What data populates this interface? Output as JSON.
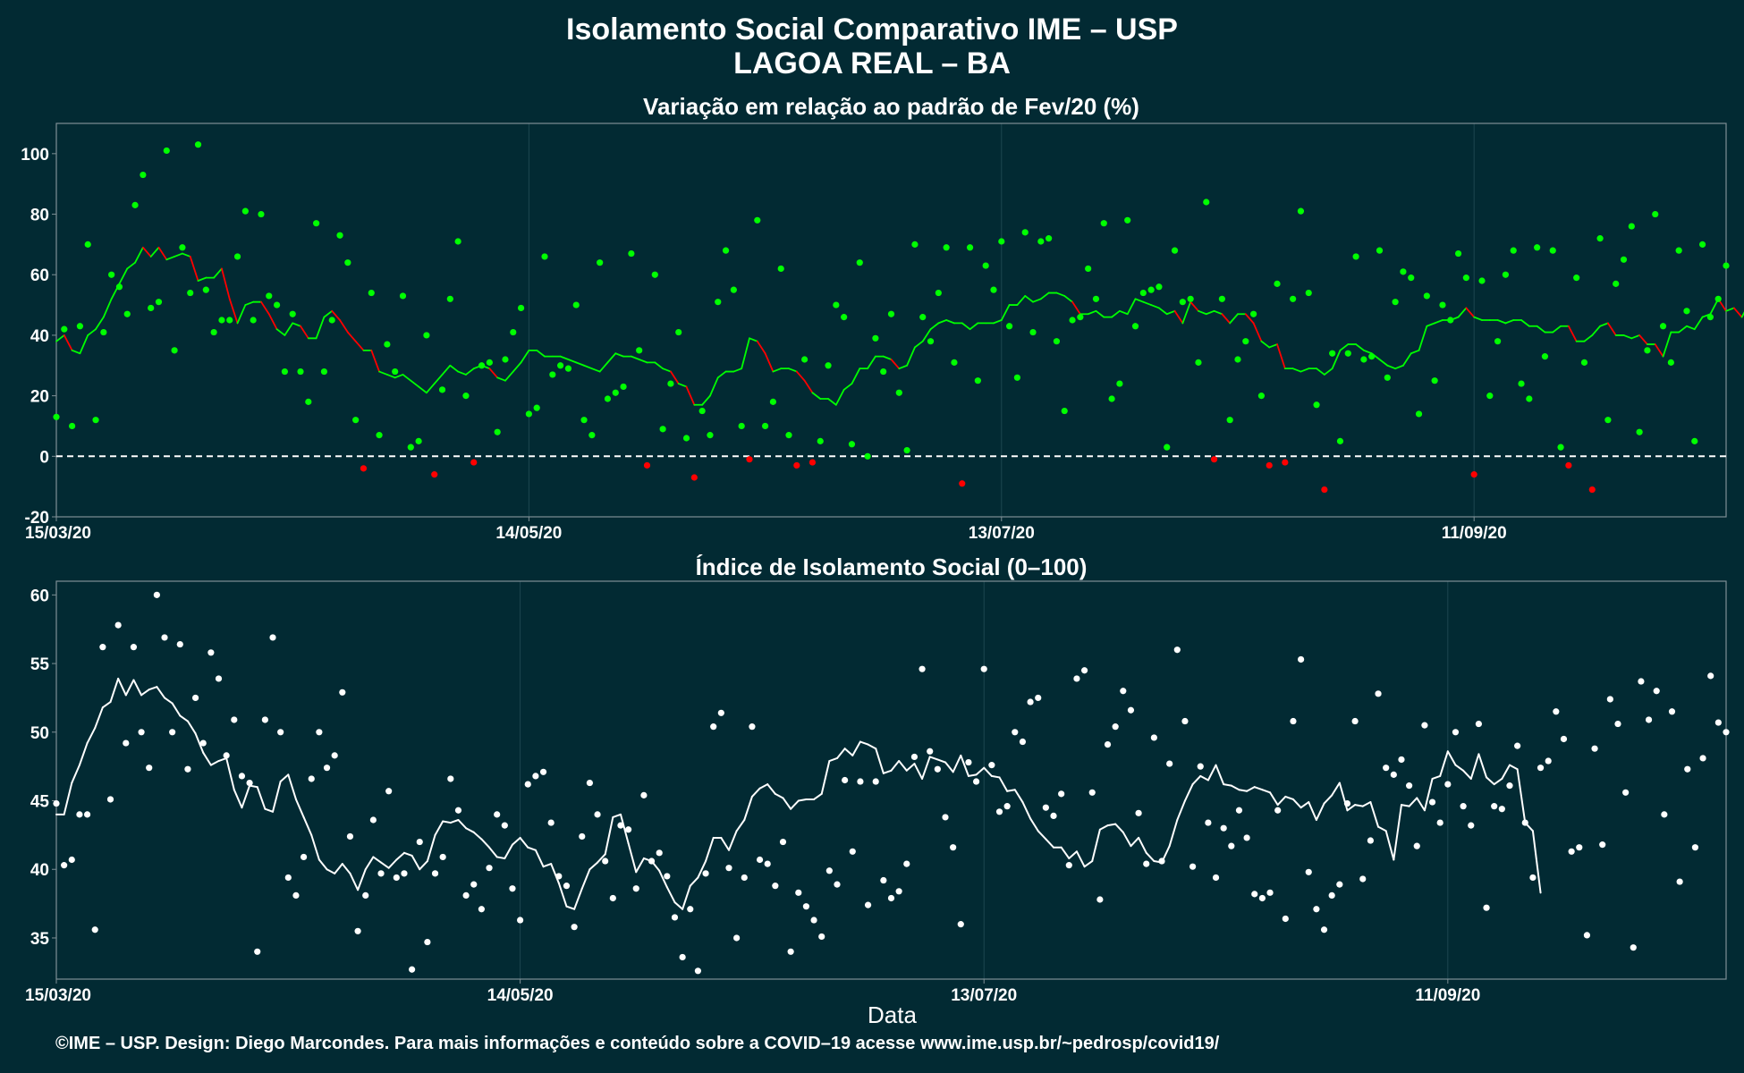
{
  "header": {
    "title_line1": "Isolamento Social Comparativo IME – USP",
    "title_line2": "LAGOA REAL – BA"
  },
  "footer": "©IME – USP. Design: Diego Marcondes. Para mais informações e conteúdo sobre a COVID–19 acesse www.ime.usp.br/~pedrosp/covid19/",
  "colors": {
    "background": "#022a33",
    "positive": "#00ff00",
    "negative": "#ff0000",
    "index": "#ffffff",
    "grid": "#1d4650",
    "frame": "#7f8f95"
  },
  "chart_data": [
    {
      "type": "scatter",
      "subtitle": "Variação em relação ao padrão de Fev/20 (%)",
      "xlabel": "",
      "ylabel": "",
      "x_start": "15/03/20",
      "x_ticks": [
        {
          "day": 0,
          "label": "15/03/20"
        },
        {
          "day": 60,
          "label": "14/05/20"
        },
        {
          "day": 120,
          "label": "13/07/20"
        },
        {
          "day": 180,
          "label": "11/09/20"
        }
      ],
      "ylim": [
        -20,
        110
      ],
      "y_ticks": [
        -20,
        0,
        20,
        40,
        60,
        80,
        100
      ],
      "reference_line": 0,
      "points": [
        13,
        42,
        10,
        43,
        70,
        12,
        41,
        60,
        56,
        47,
        83,
        93,
        49,
        51,
        101,
        35,
        69,
        54,
        103,
        55,
        41,
        45,
        45,
        66,
        81,
        45,
        80,
        53,
        50,
        28,
        47,
        28,
        18,
        77,
        28,
        45,
        73,
        64,
        12,
        -4,
        54,
        7,
        37,
        28,
        53,
        3,
        5,
        40,
        -6,
        22,
        52,
        71,
        20,
        -2,
        30,
        31,
        8,
        32,
        41,
        49,
        14,
        16,
        66,
        27,
        30,
        29,
        50,
        12,
        7,
        64,
        19,
        21,
        23,
        67,
        35,
        -3,
        60,
        9,
        24,
        41,
        6,
        -7,
        15,
        7,
        51,
        68,
        55,
        10,
        -1,
        78,
        10,
        18,
        62,
        7,
        -3,
        32,
        -2,
        5,
        30,
        50,
        46,
        4,
        64,
        0,
        39,
        28,
        47,
        21,
        2,
        70,
        46,
        38,
        54,
        69,
        31,
        -9,
        69,
        25,
        63,
        55,
        71,
        43,
        26,
        74,
        41,
        71,
        72,
        38,
        15,
        45,
        46,
        62,
        52,
        77,
        19,
        24,
        78,
        43,
        54,
        55,
        56,
        3,
        68,
        51,
        52,
        31,
        84,
        -1,
        52,
        12,
        32,
        38,
        47,
        20,
        -3,
        57,
        -2,
        52,
        81,
        54,
        17,
        -11,
        34,
        5,
        34,
        66,
        32,
        33,
        68,
        26,
        51,
        61,
        59,
        14,
        53,
        25,
        50,
        45,
        67,
        59,
        -6,
        58,
        20,
        38,
        60,
        68,
        24,
        19,
        69,
        33,
        68,
        3,
        -3,
        59,
        31,
        -11,
        72,
        12,
        57,
        65,
        76,
        8,
        35,
        80,
        43,
        31,
        68,
        48,
        5,
        70,
        46,
        52,
        63
      ],
      "smooth": [
        38,
        40,
        35,
        34,
        40,
        42,
        46,
        52,
        57,
        62,
        64,
        69,
        66,
        69,
        65,
        66,
        67,
        66,
        58,
        59,
        59,
        62,
        52,
        44,
        50,
        51,
        51,
        47,
        42,
        40,
        44,
        43,
        39,
        39,
        46,
        48,
        45,
        41,
        38,
        35,
        35,
        28,
        27,
        26,
        27,
        25,
        23,
        21,
        24,
        27,
        30,
        28,
        27,
        29,
        30,
        29,
        26,
        25,
        28,
        31,
        35,
        35,
        33,
        33,
        33,
        32,
        31,
        30,
        29,
        28,
        31,
        34,
        33,
        33,
        32,
        31,
        31,
        29,
        28,
        24,
        23,
        17,
        17,
        20,
        26,
        28,
        28,
        29,
        39,
        38,
        34,
        28,
        29,
        29,
        28,
        25,
        21,
        19,
        19,
        17,
        22,
        24,
        29,
        29,
        33,
        33,
        32,
        29,
        30,
        36,
        38,
        42,
        44,
        45,
        44,
        44,
        42,
        44,
        44,
        44,
        45,
        50,
        50,
        53,
        51,
        52,
        54,
        54,
        53,
        51,
        47,
        47,
        48,
        46,
        46,
        48,
        47,
        52,
        51,
        50,
        49,
        47,
        48,
        44,
        51,
        48,
        47,
        48,
        47,
        44,
        47,
        47,
        44,
        38,
        36,
        37,
        29,
        29,
        28,
        29,
        29,
        27,
        29,
        35,
        37,
        37,
        35,
        34,
        32,
        30,
        29,
        30,
        34,
        35,
        43,
        44,
        45,
        45,
        46,
        49,
        46,
        45,
        45,
        45,
        44,
        45,
        45,
        43,
        43,
        41,
        41,
        43,
        43,
        38,
        38,
        40,
        43,
        44,
        40,
        40,
        39,
        40,
        37,
        37,
        33,
        41,
        41,
        43,
        42,
        46,
        47,
        52,
        48,
        49,
        46,
        51,
        47,
        46,
        46,
        48,
        48
      ]
    },
    {
      "type": "scatter",
      "subtitle": "Índice de Isolamento Social (0–100)",
      "xlabel": "Data",
      "ylabel": "",
      "x_start": "15/03/20",
      "x_ticks": [
        {
          "day": 0,
          "label": "15/03/20"
        },
        {
          "day": 60,
          "label": "14/05/20"
        },
        {
          "day": 120,
          "label": "13/07/20"
        },
        {
          "day": 180,
          "label": "11/09/20"
        }
      ],
      "ylim": [
        32,
        61
      ],
      "y_ticks": [
        35,
        40,
        45,
        50,
        55,
        60
      ],
      "points": [
        44.8,
        40.3,
        40.7,
        44.0,
        44.0,
        35.6,
        56.2,
        45.1,
        57.8,
        49.2,
        56.2,
        50.0,
        47.4,
        60.0,
        56.9,
        50.0,
        56.4,
        47.3,
        52.5,
        49.2,
        55.8,
        53.9,
        48.3,
        50.9,
        46.8,
        46.3,
        34.0,
        50.9,
        56.9,
        50.0,
        39.4,
        38.1,
        40.9,
        46.6,
        50.0,
        47.4,
        48.3,
        52.9,
        42.4,
        35.5,
        38.1,
        43.6,
        39.7,
        45.7,
        39.4,
        39.7,
        32.7,
        42.0,
        34.7,
        39.7,
        40.9,
        46.6,
        44.3,
        38.1,
        38.9,
        37.1,
        40.1,
        44.0,
        43.2,
        38.6,
        36.3,
        46.2,
        46.8,
        47.1,
        43.4,
        39.5,
        38.8,
        35.8,
        42.4,
        46.3,
        44.0,
        40.6,
        37.9,
        43.2,
        42.9,
        38.6,
        45.4,
        40.6,
        41.2,
        39.5,
        36.5,
        33.6,
        37.1,
        32.6,
        39.7,
        50.4,
        51.4,
        40.1,
        35.0,
        39.4,
        50.4,
        40.7,
        40.4,
        38.8,
        42.0,
        34.0,
        38.3,
        37.3,
        36.3,
        35.1,
        39.9,
        38.9,
        46.5,
        41.3,
        46.4,
        37.4,
        46.4,
        39.2,
        37.9,
        38.4,
        40.4,
        48.2,
        54.6,
        48.6,
        47.3,
        43.8,
        41.6,
        36.0,
        47.8,
        46.4,
        54.6,
        47.6,
        44.2,
        44.6,
        50.0,
        49.3,
        52.2,
        52.5,
        44.5,
        43.9,
        45.5,
        40.3,
        53.9,
        54.5,
        45.6,
        37.8,
        49.1,
        50.4,
        53.0,
        51.6,
        44.1,
        40.4,
        49.6,
        40.6,
        47.7,
        56.0,
        50.8,
        40.2,
        47.5,
        43.4,
        39.4,
        43.0,
        41.7,
        44.3,
        42.3,
        38.2,
        37.9,
        38.3,
        44.3,
        36.4,
        50.8,
        55.3,
        39.8,
        37.1,
        35.6,
        38.1,
        38.9,
        44.8,
        50.8,
        39.3,
        42.1,
        52.8,
        47.4,
        46.9,
        48.0,
        46.1,
        41.7,
        50.5,
        44.9,
        43.4,
        46.2,
        50.0,
        44.6,
        43.2,
        50.6,
        37.2,
        44.6,
        44.4,
        46.1,
        49.0,
        43.4,
        39.4,
        47.4,
        47.9,
        51.5,
        49.5,
        41.3,
        41.6,
        35.2,
        48.8,
        41.8,
        52.4,
        50.6,
        45.6,
        34.3,
        53.7,
        50.9,
        53.0,
        44.0,
        51.5,
        39.1,
        47.3,
        41.6,
        48.1,
        54.1,
        50.7,
        50.0
      ],
      "smooth": [
        44.0,
        44.0,
        46.3,
        47.6,
        49.2,
        50.3,
        51.8,
        52.2,
        53.9,
        52.7,
        53.8,
        52.7,
        53.1,
        53.3,
        52.5,
        52.1,
        51.2,
        50.8,
        49.9,
        48.5,
        47.6,
        47.9,
        48.1,
        45.8,
        44.5,
        46.1,
        46.0,
        44.4,
        44.2,
        46.4,
        46.9,
        45.1,
        43.8,
        42.5,
        40.7,
        40.0,
        39.7,
        40.4,
        39.7,
        38.5,
        40.0,
        40.9,
        40.5,
        40.1,
        40.7,
        41.2,
        41.0,
        40.0,
        40.6,
        42.5,
        43.5,
        43.4,
        43.6,
        43.0,
        42.7,
        42.2,
        41.6,
        40.9,
        40.8,
        41.8,
        42.3,
        41.6,
        41.4,
        40.2,
        40.4,
        39.0,
        37.3,
        37.1,
        38.6,
        40.0,
        40.5,
        41.1,
        43.8,
        44.0,
        41.9,
        39.8,
        40.8,
        40.6,
        39.9,
        38.7,
        37.6,
        37.1,
        38.8,
        39.4,
        40.6,
        42.3,
        42.3,
        41.4,
        42.8,
        43.6,
        45.3,
        45.9,
        46.2,
        45.5,
        45.2,
        44.4,
        45.0,
        45.1,
        45.1,
        45.5,
        47.9,
        48.1,
        48.8,
        48.3,
        49.3,
        49.1,
        48.8,
        47.0,
        47.2,
        47.9,
        47.2,
        47.7,
        46.6,
        48.2,
        48.0,
        47.8,
        47.1,
        48.3,
        46.8,
        46.9,
        47.4,
        46.8,
        46.7,
        45.7,
        45.8,
        44.9,
        43.7,
        42.8,
        42.2,
        41.6,
        41.6,
        40.8,
        41.3,
        40.2,
        40.6,
        42.9,
        43.2,
        43.3,
        42.7,
        41.7,
        42.3,
        41.2,
        40.6,
        40.5,
        41.7,
        43.6,
        45.0,
        46.2,
        46.8,
        46.5,
        47.6,
        46.2,
        46.1,
        45.8,
        45.7,
        46.0,
        45.8,
        45.6,
        44.7,
        45.3,
        45.1,
        44.5,
        44.9,
        43.6,
        44.8,
        45.4,
        46.3,
        44.3,
        44.7,
        44.6,
        44.9,
        43.1,
        42.8,
        40.7,
        44.7,
        44.6,
        45.2,
        44.3,
        46.6,
        46.8,
        48.6,
        47.6,
        47.2,
        46.6,
        48.4,
        46.7,
        46.2,
        46.6,
        47.6,
        47.3,
        43.4,
        42.8,
        38.3
      ]
    }
  ]
}
